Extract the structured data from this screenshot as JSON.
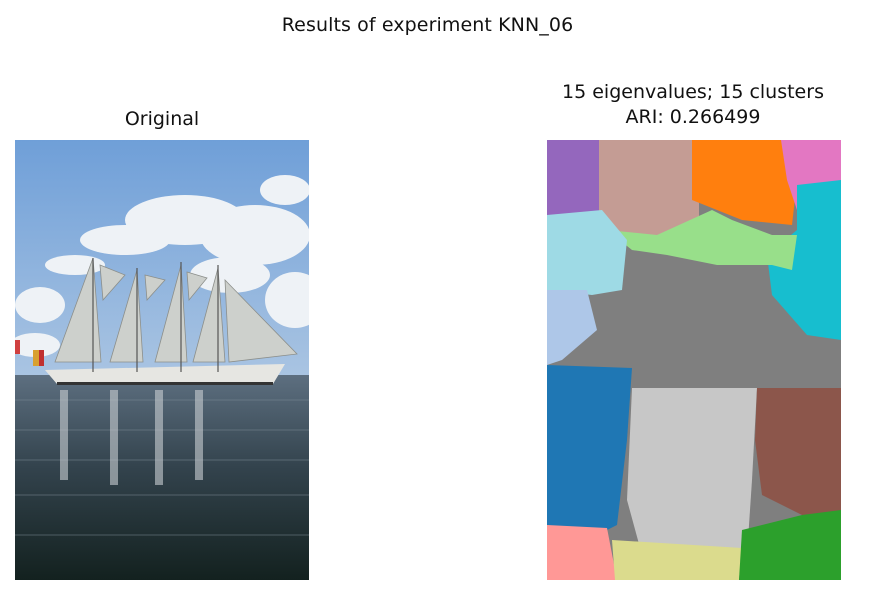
{
  "figure": {
    "title": "Results of experiment KNN_06"
  },
  "panels": {
    "left": {
      "title": "Original"
    },
    "right": {
      "title_line1": "15 eigenvalues; 15 clusters",
      "title_line2": "ARI: 0.266499"
    }
  },
  "segmentation": {
    "eigenvalues": 15,
    "clusters": 15,
    "ari": 0.266499,
    "palette": [
      "#1f77b4",
      "#aec7e8",
      "#ff7f0e",
      "#2ca02c",
      "#98df8a",
      "#ff9896",
      "#8c564b",
      "#c49c94",
      "#e377c2",
      "#7f7f7f",
      "#c7c7c7",
      "#dbdb8d",
      "#17becf",
      "#9edae5",
      "#9467bd"
    ]
  },
  "photo_colors": {
    "sky_top": "#6f9fd8",
    "sky_mid": "#8fb6e3",
    "cloud": "#eef2f6",
    "sea_top": "#5d6f80",
    "sea_bottom": "#13211f",
    "sail": "#cdd0cc",
    "hull": "#e6e6e2"
  }
}
